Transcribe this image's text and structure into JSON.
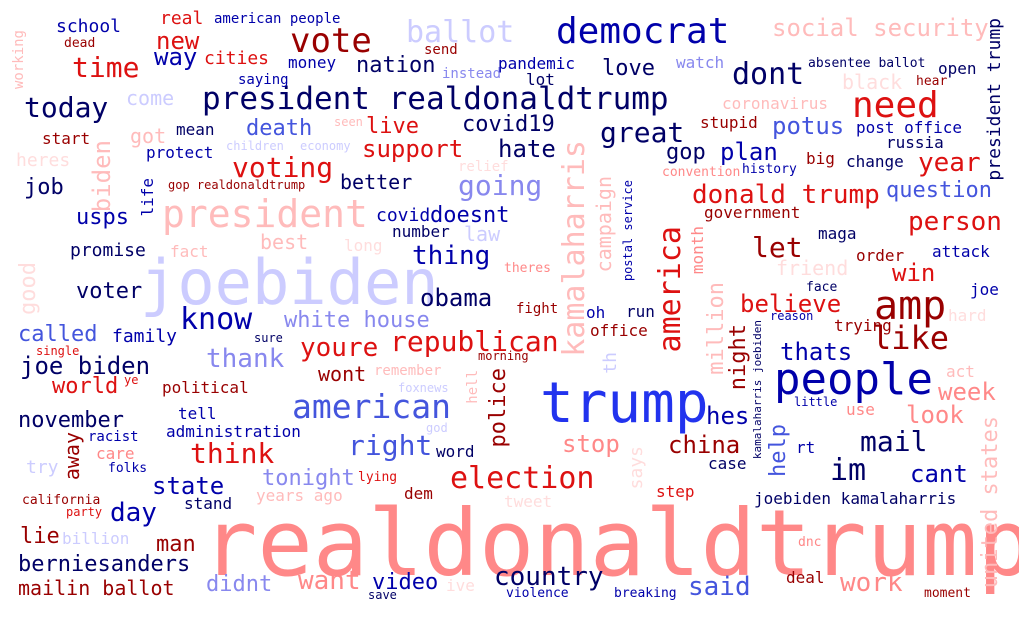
{
  "colors": {
    "navy": "#000066",
    "dark_blue": "#0000aa",
    "blue": "#2233ee",
    "mid_blue": "#4455dd",
    "light_blue": "#8888ee",
    "pale_blue": "#ccccff",
    "dark_red": "#990000",
    "red": "#dd1111",
    "salmon": "#ff8888",
    "pink": "#ffbbbb",
    "pale_pink": "#ffdddd"
  },
  "words": [
    {
      "text": "realdonaldtrump",
      "color": "salmon"
    },
    {
      "text": "trump",
      "color": "blue"
    },
    {
      "text": "joebiden",
      "color": "pale_blue"
    },
    {
      "text": "people",
      "color": "dark_blue"
    },
    {
      "text": "democrat",
      "color": "dark_blue"
    },
    {
      "text": "president realdonaldtrump",
      "color": "navy"
    },
    {
      "text": "president",
      "color": "pink"
    },
    {
      "text": "american",
      "color": "mid_blue"
    },
    {
      "text": "vote",
      "color": "dark_red"
    },
    {
      "text": "need",
      "color": "red"
    },
    {
      "text": "amp",
      "color": "dark_red"
    },
    {
      "text": "election",
      "color": "red"
    },
    {
      "text": "dont",
      "color": "navy"
    },
    {
      "text": "today",
      "color": "navy"
    },
    {
      "text": "time",
      "color": "red"
    },
    {
      "text": "new",
      "color": "red"
    },
    {
      "text": "know",
      "color": "dark_blue"
    },
    {
      "text": "like",
      "color": "dark_red"
    },
    {
      "text": "great",
      "color": "navy"
    },
    {
      "text": "america",
      "color": "red"
    },
    {
      "text": "kamalaharris",
      "color": "pink"
    },
    {
      "text": "joe biden",
      "color": "navy"
    },
    {
      "text": "donald trump",
      "color": "red"
    },
    {
      "text": "republican",
      "color": "red"
    },
    {
      "text": "voting",
      "color": "red"
    },
    {
      "text": "im",
      "color": "navy"
    },
    {
      "text": "mail",
      "color": "navy"
    },
    {
      "text": "day",
      "color": "dark_blue"
    },
    {
      "text": "country",
      "color": "navy"
    },
    {
      "text": "want",
      "color": "salmon"
    },
    {
      "text": "said",
      "color": "mid_blue"
    },
    {
      "text": "work",
      "color": "salmon"
    },
    {
      "text": "think",
      "color": "red"
    },
    {
      "text": "right",
      "color": "mid_blue"
    },
    {
      "text": "going",
      "color": "light_blue"
    },
    {
      "text": "thing",
      "color": "dark_blue"
    },
    {
      "text": "youre",
      "color": "red"
    },
    {
      "text": "obama",
      "color": "navy"
    },
    {
      "text": "ballot",
      "color": "pale_blue"
    },
    {
      "text": "social security",
      "color": "pink"
    },
    {
      "text": "way",
      "color": "dark_blue"
    },
    {
      "text": "nation",
      "color": "navy"
    },
    {
      "text": "love",
      "color": "navy"
    },
    {
      "text": "potus",
      "color": "mid_blue"
    },
    {
      "text": "year",
      "color": "red"
    },
    {
      "text": "person",
      "color": "red"
    },
    {
      "text": "let",
      "color": "dark_red"
    },
    {
      "text": "win",
      "color": "red"
    },
    {
      "text": "believe",
      "color": "red"
    },
    {
      "text": "thats",
      "color": "dark_blue"
    },
    {
      "text": "look",
      "color": "salmon"
    },
    {
      "text": "week",
      "color": "salmon"
    },
    {
      "text": "cant",
      "color": "dark_blue"
    },
    {
      "text": "hes",
      "color": "dark_blue"
    },
    {
      "text": "china",
      "color": "dark_red"
    },
    {
      "text": "stop",
      "color": "salmon"
    },
    {
      "text": "help",
      "color": "mid_blue"
    },
    {
      "text": "night",
      "color": "dark_red"
    },
    {
      "text": "million",
      "color": "pink"
    },
    {
      "text": "campaign",
      "color": "pink"
    },
    {
      "text": "police",
      "color": "dark_red"
    },
    {
      "text": "united states",
      "color": "pink"
    },
    {
      "text": "president trump",
      "color": "navy"
    },
    {
      "text": "support",
      "color": "red"
    },
    {
      "text": "hate",
      "color": "navy"
    },
    {
      "text": "live",
      "color": "red"
    },
    {
      "text": "death",
      "color": "mid_blue"
    },
    {
      "text": "covid19",
      "color": "navy"
    },
    {
      "text": "gop",
      "color": "navy"
    },
    {
      "text": "plan",
      "color": "dark_blue"
    },
    {
      "text": "question",
      "color": "mid_blue"
    },
    {
      "text": "state",
      "color": "dark_blue"
    },
    {
      "text": "tonight",
      "color": "light_blue"
    },
    {
      "text": "white house",
      "color": "light_blue"
    },
    {
      "text": "thank",
      "color": "light_blue"
    },
    {
      "text": "wont",
      "color": "dark_red"
    },
    {
      "text": "called",
      "color": "mid_blue"
    },
    {
      "text": "world",
      "color": "red"
    },
    {
      "text": "november",
      "color": "navy"
    },
    {
      "text": "berniesanders",
      "color": "navy"
    },
    {
      "text": "lie",
      "color": "dark_red"
    },
    {
      "text": "man",
      "color": "dark_red"
    },
    {
      "text": "mailin ballot",
      "color": "dark_red"
    },
    {
      "text": "didnt",
      "color": "light_blue"
    },
    {
      "text": "video",
      "color": "dark_blue"
    },
    {
      "text": "job",
      "color": "navy"
    },
    {
      "text": "usps",
      "color": "dark_blue"
    },
    {
      "text": "voter",
      "color": "navy"
    },
    {
      "text": "promise",
      "color": "navy"
    },
    {
      "text": "family",
      "color": "dark_blue"
    },
    {
      "text": "biden",
      "color": "pink"
    },
    {
      "text": "better",
      "color": "navy"
    },
    {
      "text": "doesnt",
      "color": "dark_blue"
    },
    {
      "text": "covid",
      "color": "dark_blue"
    },
    {
      "text": "number",
      "color": "navy"
    },
    {
      "text": "law",
      "color": "pale_blue"
    },
    {
      "text": "best",
      "color": "pink"
    },
    {
      "text": "got",
      "color": "pink"
    },
    {
      "text": "come",
      "color": "pale_blue"
    },
    {
      "text": "mean",
      "color": "navy"
    },
    {
      "text": "protect",
      "color": "dark_blue"
    },
    {
      "text": "start",
      "color": "dark_red"
    },
    {
      "text": "heres",
      "color": "pale_pink"
    },
    {
      "text": "school",
      "color": "dark_blue"
    },
    {
      "text": "real",
      "color": "red"
    },
    {
      "text": "american people",
      "color": "dark_blue"
    },
    {
      "text": "dead",
      "color": "dark_red"
    },
    {
      "text": "working",
      "color": "pink"
    },
    {
      "text": "cities",
      "color": "red"
    },
    {
      "text": "money",
      "color": "dark_blue"
    },
    {
      "text": "saying",
      "color": "dark_blue"
    },
    {
      "text": "send",
      "color": "dark_red"
    },
    {
      "text": "instead",
      "color": "light_blue"
    },
    {
      "text": "pandemic",
      "color": "dark_blue"
    },
    {
      "text": "lot",
      "color": "navy"
    },
    {
      "text": "watch",
      "color": "light_blue"
    },
    {
      "text": "absentee ballot",
      "color": "navy"
    },
    {
      "text": "open",
      "color": "navy"
    },
    {
      "text": "black",
      "color": "pale_pink"
    },
    {
      "text": "hear",
      "color": "dark_red"
    },
    {
      "text": "coronavirus",
      "color": "pink"
    },
    {
      "text": "stupid",
      "color": "dark_red"
    },
    {
      "text": "post office",
      "color": "dark_blue"
    },
    {
      "text": "russia",
      "color": "navy"
    },
    {
      "text": "big",
      "color": "dark_red"
    },
    {
      "text": "change",
      "color": "navy"
    },
    {
      "text": "history",
      "color": "dark_blue"
    },
    {
      "text": "convention",
      "color": "salmon"
    },
    {
      "text": "government",
      "color": "dark_red"
    },
    {
      "text": "maga",
      "color": "navy"
    },
    {
      "text": "order",
      "color": "dark_red"
    },
    {
      "text": "attack",
      "color": "dark_blue"
    },
    {
      "text": "friend",
      "color": "pale_pink"
    },
    {
      "text": "face",
      "color": "navy"
    },
    {
      "text": "joe",
      "color": "dark_blue"
    },
    {
      "text": "trying",
      "color": "dark_red"
    },
    {
      "text": "hard",
      "color": "pale_pink"
    },
    {
      "text": "reason",
      "color": "dark_blue"
    },
    {
      "text": "act",
      "color": "pink"
    },
    {
      "text": "use",
      "color": "salmon"
    },
    {
      "text": "little",
      "color": "dark_blue"
    },
    {
      "text": "kamalaharris joebiden",
      "color": "navy"
    },
    {
      "text": "joebiden kamalaharris",
      "color": "navy"
    },
    {
      "text": "case",
      "color": "navy"
    },
    {
      "text": "rt",
      "color": "dark_blue"
    },
    {
      "text": "step",
      "color": "red"
    },
    {
      "text": "dnc",
      "color": "salmon"
    },
    {
      "text": "deal",
      "color": "dark_red"
    },
    {
      "text": "moment",
      "color": "dark_red"
    },
    {
      "text": "breaking",
      "color": "dark_blue"
    },
    {
      "text": "violence",
      "color": "dark_blue"
    },
    {
      "text": "ive",
      "color": "pale_pink"
    },
    {
      "text": "save",
      "color": "navy"
    },
    {
      "text": "tweet",
      "color": "pale_pink"
    },
    {
      "text": "dem",
      "color": "dark_red"
    },
    {
      "text": "years ago",
      "color": "pink"
    },
    {
      "text": "lying",
      "color": "red"
    },
    {
      "text": "stand",
      "color": "navy"
    },
    {
      "text": "california",
      "color": "dark_red"
    },
    {
      "text": "party",
      "color": "red"
    },
    {
      "text": "billion",
      "color": "pale_blue"
    },
    {
      "text": "try",
      "color": "pale_blue"
    },
    {
      "text": "folks",
      "color": "dark_blue"
    },
    {
      "text": "care",
      "color": "salmon"
    },
    {
      "text": "racist",
      "color": "dark_blue"
    },
    {
      "text": "away",
      "color": "dark_red"
    },
    {
      "text": "tell",
      "color": "dark_blue"
    },
    {
      "text": "administration",
      "color": "dark_blue"
    },
    {
      "text": "political",
      "color": "dark_red"
    },
    {
      "text": "ye",
      "color": "red"
    },
    {
      "text": "single",
      "color": "red"
    },
    {
      "text": "sure",
      "color": "navy"
    },
    {
      "text": "remember",
      "color": "pink"
    },
    {
      "text": "foxnews",
      "color": "pale_blue"
    },
    {
      "text": "god",
      "color": "pale_blue"
    },
    {
      "text": "word",
      "color": "navy"
    },
    {
      "text": "morning",
      "color": "dark_red"
    },
    {
      "text": "hell",
      "color": "pink"
    },
    {
      "text": "th",
      "color": "pale_blue"
    },
    {
      "text": "says",
      "color": "pale_pink"
    },
    {
      "text": "oh",
      "color": "dark_blue"
    },
    {
      "text": "run",
      "color": "navy"
    },
    {
      "text": "office",
      "color": "dark_red"
    },
    {
      "text": "month",
      "color": "salmon"
    },
    {
      "text": "postal service",
      "color": "dark_blue"
    },
    {
      "text": "theres",
      "color": "salmon"
    },
    {
      "text": "fight",
      "color": "dark_red"
    },
    {
      "text": "long",
      "color": "pale_pink"
    },
    {
      "text": "fact",
      "color": "pink"
    },
    {
      "text": "good",
      "color": "pale_pink"
    },
    {
      "text": "life",
      "color": "dark_blue"
    },
    {
      "text": "gop realdonaldtrump",
      "color": "dark_red"
    },
    {
      "text": "children",
      "color": "pale_blue"
    },
    {
      "text": "economy",
      "color": "pale_blue"
    },
    {
      "text": "seen",
      "color": "pink"
    },
    {
      "text": "relief",
      "color": "pale_pink"
    }
  ]
}
